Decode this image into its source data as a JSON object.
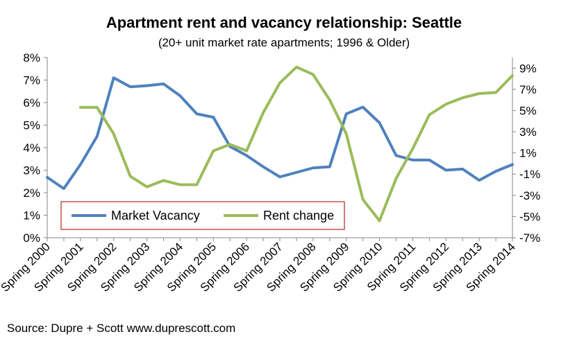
{
  "chart_data": {
    "type": "line",
    "title": "Apartment rent and vacancy relationship: Seattle",
    "subtitle": "(20+ unit market rate apartments; 1996 & Older)",
    "source": "Source: Dupre + Scott   www.duprescott.com",
    "x_labels": [
      "Spring 2000",
      "Spring 2001",
      "Spring 2002",
      "Spring 2003",
      "Spring 2004",
      "Spring 2005",
      "Spring 2006",
      "Spring 2007",
      "Spring 2008",
      "Spring 2009",
      "Spring 2010",
      "Spring 2011",
      "Spring 2012",
      "Spring 2013",
      "Spring 2014"
    ],
    "n_points": 29,
    "left_axis": {
      "ylim": [
        0,
        8
      ],
      "ticks": [
        "0%",
        "1%",
        "2%",
        "3%",
        "4%",
        "5%",
        "6%",
        "7%",
        "8%"
      ]
    },
    "right_axis": {
      "ylim": [
        -7,
        10
      ],
      "ticks": [
        "-7%",
        "-5%",
        "-3%",
        "-1%",
        "1%",
        "3%",
        "5%",
        "7%",
        "9%"
      ]
    },
    "series": [
      {
        "name": "Market Vacancy",
        "axis": "left",
        "color": "#4F81BD",
        "values": [
          2.68,
          2.18,
          3.25,
          4.5,
          7.1,
          6.7,
          6.75,
          6.83,
          6.3,
          5.5,
          5.35,
          4.05,
          3.65,
          3.15,
          2.7,
          2.9,
          3.1,
          3.15,
          5.5,
          5.8,
          5.1,
          3.65,
          3.45,
          3.45,
          3.0,
          3.05,
          2.55,
          2.95,
          3.25
        ]
      },
      {
        "name": "Rent change",
        "axis": "right",
        "color": "#9BBB59",
        "values": [
          null,
          null,
          5.3,
          5.3,
          2.8,
          -1.2,
          -2.2,
          -1.6,
          -2.0,
          -2.0,
          1.2,
          1.8,
          1.2,
          4.8,
          7.6,
          9.1,
          8.4,
          6.0,
          2.8,
          -3.4,
          -5.4,
          -1.4,
          1.4,
          4.6,
          5.6,
          6.2,
          6.6,
          6.7,
          8.3
        ]
      }
    ],
    "legend": {
      "position": "bottom-left",
      "border_color": "#C0504D"
    },
    "grid": false
  }
}
